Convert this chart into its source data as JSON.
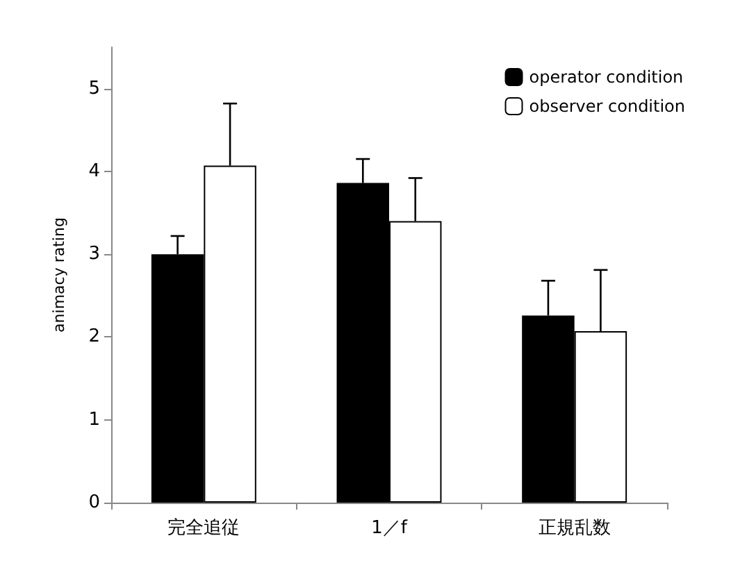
{
  "chart_data": {
    "type": "bar",
    "ylabel": "animacy rating",
    "categories": [
      "完全追従",
      "1／f",
      "正規乱数"
    ],
    "series": [
      {
        "name": "operator condition",
        "color": "#000000",
        "values": [
          3.0,
          3.86,
          2.26
        ],
        "errors": [
          [
            3.0,
            3.22
          ],
          [
            3.86,
            4.15
          ],
          [
            2.26,
            2.68
          ]
        ]
      },
      {
        "name": "observer condition",
        "color": "#ffffff",
        "values": [
          4.07,
          3.4,
          2.07
        ],
        "errors": [
          [
            4.07,
            4.82
          ],
          [
            3.4,
            3.92
          ],
          [
            2.07,
            2.81
          ]
        ]
      }
    ],
    "ylim": [
      0,
      5.5
    ],
    "yticks": [
      0,
      1,
      2,
      3,
      4,
      5
    ],
    "grid": false,
    "legend": "top right"
  }
}
